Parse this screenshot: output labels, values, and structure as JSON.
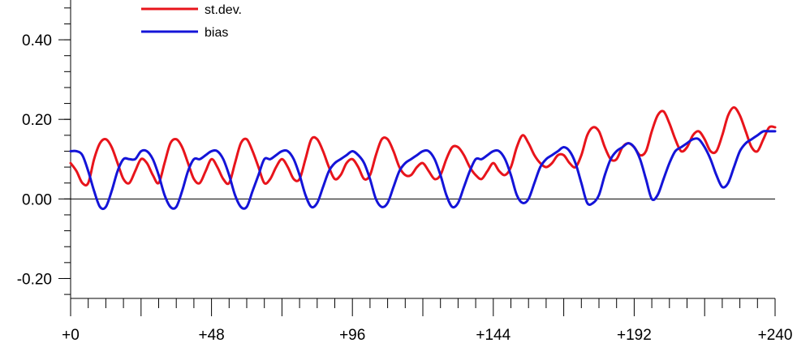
{
  "chart_data": {
    "type": "line",
    "title": "",
    "xlabel": "",
    "ylabel": "",
    "xlim": [
      0,
      240
    ],
    "ylim": [
      -0.25,
      0.5
    ],
    "x_ticks": [
      0,
      48,
      96,
      144,
      192,
      240
    ],
    "x_tick_labels": [
      "+0",
      "+48",
      "+96",
      "+144",
      "+192",
      "+240"
    ],
    "y_ticks": [
      -0.2,
      0.0,
      0.2,
      0.4
    ],
    "y_tick_labels": [
      "-0.20",
      "0.00",
      "0.20",
      "0.40"
    ],
    "reference_line": 0.0,
    "legend_position": "top-left",
    "series": [
      {
        "name": "st.dev.",
        "color": "#e8141b",
        "x": [
          0,
          2,
          4,
          6,
          8,
          10,
          12,
          14,
          16,
          18,
          20,
          22,
          24,
          26,
          28,
          30,
          32,
          34,
          36,
          38,
          40,
          42,
          44,
          46,
          48,
          50,
          52,
          54,
          56,
          58,
          60,
          62,
          64,
          66,
          68,
          70,
          72,
          74,
          76,
          78,
          80,
          82,
          84,
          86,
          88,
          90,
          92,
          94,
          96,
          98,
          100,
          102,
          104,
          106,
          108,
          110,
          112,
          114,
          116,
          118,
          120,
          122,
          124,
          126,
          128,
          130,
          132,
          134,
          136,
          138,
          140,
          142,
          144,
          146,
          148,
          150,
          152,
          154,
          156,
          158,
          160,
          162,
          164,
          166,
          168,
          170,
          172,
          174,
          176,
          178,
          180,
          182,
          184,
          186,
          188,
          190,
          192,
          194,
          196,
          198,
          200,
          202,
          204,
          206,
          208,
          210,
          212,
          214,
          216,
          218,
          220,
          222,
          224,
          226,
          228,
          230,
          232,
          234,
          236,
          238,
          240
        ],
        "values": [
          0.09,
          0.07,
          0.04,
          0.04,
          0.1,
          0.14,
          0.15,
          0.13,
          0.09,
          0.05,
          0.04,
          0.07,
          0.1,
          0.09,
          0.06,
          0.04,
          0.09,
          0.14,
          0.15,
          0.13,
          0.09,
          0.05,
          0.04,
          0.07,
          0.1,
          0.08,
          0.05,
          0.04,
          0.09,
          0.14,
          0.15,
          0.12,
          0.08,
          0.04,
          0.05,
          0.08,
          0.1,
          0.08,
          0.05,
          0.05,
          0.1,
          0.15,
          0.15,
          0.12,
          0.08,
          0.05,
          0.06,
          0.09,
          0.1,
          0.08,
          0.05,
          0.06,
          0.11,
          0.15,
          0.15,
          0.12,
          0.08,
          0.06,
          0.06,
          0.08,
          0.09,
          0.07,
          0.05,
          0.06,
          0.1,
          0.13,
          0.13,
          0.11,
          0.08,
          0.06,
          0.05,
          0.07,
          0.09,
          0.07,
          0.06,
          0.08,
          0.13,
          0.16,
          0.14,
          0.11,
          0.09,
          0.08,
          0.09,
          0.11,
          0.11,
          0.09,
          0.08,
          0.11,
          0.16,
          0.18,
          0.17,
          0.13,
          0.1,
          0.1,
          0.13,
          0.14,
          0.13,
          0.11,
          0.12,
          0.17,
          0.21,
          0.22,
          0.19,
          0.15,
          0.12,
          0.13,
          0.16,
          0.17,
          0.15,
          0.12,
          0.12,
          0.16,
          0.21,
          0.23,
          0.21,
          0.17,
          0.13,
          0.12,
          0.15,
          0.18,
          0.18
        ]
      },
      {
        "name": "bias",
        "color": "#1414d8",
        "x": [
          0,
          2,
          4,
          6,
          8,
          10,
          12,
          14,
          16,
          18,
          20,
          22,
          24,
          26,
          28,
          30,
          32,
          34,
          36,
          38,
          40,
          42,
          44,
          46,
          48,
          50,
          52,
          54,
          56,
          58,
          60,
          62,
          64,
          66,
          68,
          70,
          72,
          74,
          76,
          78,
          80,
          82,
          84,
          86,
          88,
          90,
          92,
          94,
          96,
          98,
          100,
          102,
          104,
          106,
          108,
          110,
          112,
          114,
          116,
          118,
          120,
          122,
          124,
          126,
          128,
          130,
          132,
          134,
          136,
          138,
          140,
          142,
          144,
          146,
          148,
          150,
          152,
          154,
          156,
          158,
          160,
          162,
          164,
          166,
          168,
          170,
          172,
          174,
          176,
          178,
          180,
          182,
          184,
          186,
          188,
          190,
          192,
          194,
          196,
          198,
          200,
          202,
          204,
          206,
          208,
          210,
          212,
          214,
          216,
          218,
          220,
          222,
          224,
          226,
          228,
          230,
          232,
          234,
          236,
          238,
          240
        ],
        "values": [
          0.12,
          0.12,
          0.11,
          0.07,
          0.02,
          -0.02,
          -0.02,
          0.02,
          0.07,
          0.1,
          0.1,
          0.1,
          0.12,
          0.12,
          0.1,
          0.06,
          0.01,
          -0.02,
          -0.02,
          0.02,
          0.07,
          0.1,
          0.1,
          0.11,
          0.12,
          0.12,
          0.1,
          0.06,
          0.01,
          -0.02,
          -0.02,
          0.02,
          0.06,
          0.1,
          0.1,
          0.11,
          0.12,
          0.12,
          0.1,
          0.06,
          0.01,
          -0.02,
          -0.01,
          0.03,
          0.07,
          0.09,
          0.1,
          0.11,
          0.12,
          0.11,
          0.09,
          0.05,
          0.0,
          -0.02,
          -0.01,
          0.03,
          0.07,
          0.09,
          0.1,
          0.11,
          0.12,
          0.12,
          0.1,
          0.06,
          0.01,
          -0.02,
          -0.01,
          0.03,
          0.07,
          0.1,
          0.1,
          0.11,
          0.12,
          0.12,
          0.1,
          0.06,
          0.01,
          -0.01,
          0.0,
          0.04,
          0.08,
          0.1,
          0.11,
          0.12,
          0.13,
          0.12,
          0.09,
          0.04,
          -0.01,
          -0.01,
          0.01,
          0.06,
          0.1,
          0.12,
          0.13,
          0.14,
          0.13,
          0.1,
          0.05,
          0.0,
          0.01,
          0.05,
          0.09,
          0.12,
          0.13,
          0.14,
          0.15,
          0.15,
          0.13,
          0.1,
          0.06,
          0.03,
          0.04,
          0.08,
          0.12,
          0.14,
          0.15,
          0.16,
          0.17,
          0.17,
          0.17
        ]
      }
    ]
  }
}
